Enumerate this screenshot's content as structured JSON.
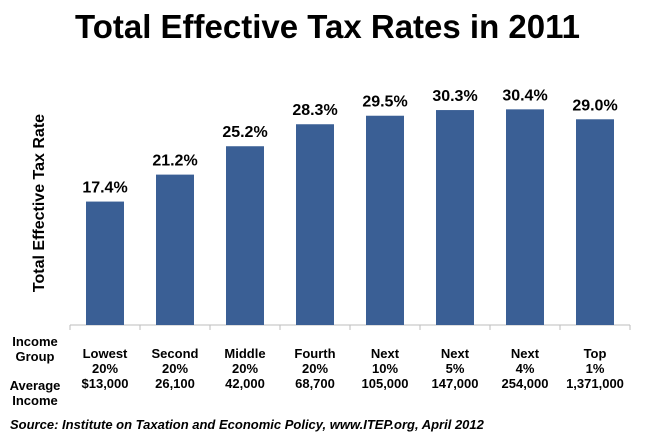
{
  "chart_data": {
    "type": "bar",
    "title": "Total Effective Tax Rates in 2011",
    "ylabel": "Total Effective Tax Rate",
    "xlabel": "",
    "ylim": [
      0,
      32
    ],
    "grid": false,
    "bar_color": "#3a5f95",
    "values": [
      17.4,
      21.2,
      25.2,
      28.3,
      29.5,
      30.3,
      30.4,
      29.0
    ],
    "data_labels": [
      "17.4%",
      "21.2%",
      "25.2%",
      "28.3%",
      "29.5%",
      "30.3%",
      "30.4%",
      "29.0%"
    ],
    "row_headers": {
      "income_group": [
        "Income",
        "Group"
      ],
      "average_income": [
        "Average",
        "Income"
      ]
    },
    "categories": [
      {
        "name": "Lowest",
        "share": "20%",
        "income": "$13,000"
      },
      {
        "name": "Second",
        "share": "20%",
        "income": "26,100"
      },
      {
        "name": "Middle",
        "share": "20%",
        "income": "42,000"
      },
      {
        "name": "Fourth",
        "share": "20%",
        "income": "68,700"
      },
      {
        "name": "Next",
        "share": "10%",
        "income": "105,000"
      },
      {
        "name": "Next",
        "share": "5%",
        "income": "147,000"
      },
      {
        "name": "Next",
        "share": "4%",
        "income": "254,000"
      },
      {
        "name": "Top",
        "share": "1%",
        "income": "1,371,000"
      }
    ]
  },
  "source": "Source:  Institute on Taxation and Economic Policy, www.ITEP.org, April 2012"
}
